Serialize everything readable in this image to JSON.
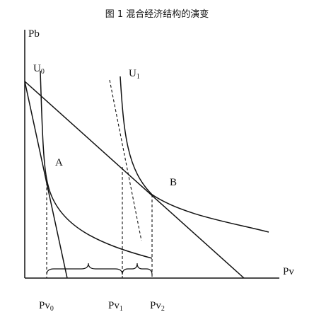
{
  "title": "图 1   混合经济结构的演变",
  "axes": {
    "y_label": "Pb",
    "x_label": "Pv"
  },
  "curves": [
    {
      "base": "U",
      "sub": "0"
    },
    {
      "base": "U",
      "sub": "1"
    }
  ],
  "points": [
    "A",
    "B"
  ],
  "x_marks": [
    {
      "base": "Pv",
      "sub": "0"
    },
    {
      "base": "Pv",
      "sub": "1"
    },
    {
      "base": "Pv",
      "sub": "2"
    }
  ]
}
